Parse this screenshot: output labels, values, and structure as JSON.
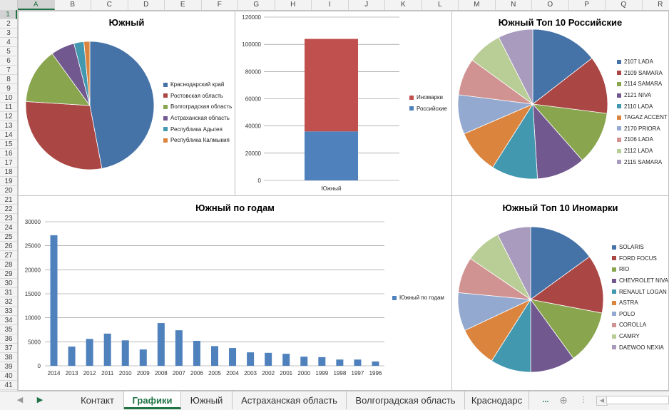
{
  "columns": [
    "A",
    "B",
    "C",
    "D",
    "E",
    "F",
    "G",
    "H",
    "I",
    "J",
    "K",
    "L",
    "M",
    "N",
    "O",
    "P",
    "Q",
    "R"
  ],
  "rows": [
    "1",
    "2",
    "3",
    "4",
    "5",
    "6",
    "7",
    "8",
    "9",
    "10",
    "11",
    "12",
    "13",
    "14",
    "15",
    "16",
    "17",
    "18",
    "19",
    "20",
    "21",
    "22",
    "23",
    "24",
    "25",
    "26",
    "27",
    "28",
    "29",
    "30",
    "31",
    "32",
    "33",
    "34",
    "35",
    "36",
    "37",
    "38",
    "39",
    "40",
    "41"
  ],
  "charts": {
    "pie_regions": {
      "title": "Южный",
      "legend": [
        "Краснодарский край",
        "Ростовская область",
        "Волгоградская область",
        "Астраханская область",
        "Республика Адыгея",
        "Республика Калмыкия"
      ]
    },
    "stacked": {
      "yticks": [
        "120000",
        "100000",
        "80000",
        "60000",
        "40000",
        "20000",
        "0"
      ],
      "category": "Южный",
      "legend": [
        "Иномарки",
        "Российские"
      ]
    },
    "pie_ru": {
      "title": "Южный Топ 10 Российские",
      "legend": [
        "2107 LADA",
        "2109 SAMARA",
        "2114 SAMARA",
        "2121 NIVA",
        "2110 LADA",
        "TAGAZ ACCENT",
        "2170 PRIORA",
        "2106 LADA",
        "2112 LADA",
        "2115 SAMARA"
      ]
    },
    "years": {
      "title": "Южный по годам",
      "yticks": [
        "30000",
        "25000",
        "20000",
        "15000",
        "10000",
        "5000",
        "0"
      ],
      "xlabels": [
        "2014",
        "2013",
        "2012",
        "2011",
        "2010",
        "2009",
        "2008",
        "2007",
        "2006",
        "2005",
        "2004",
        "2003",
        "2002",
        "2001",
        "2000",
        "1999",
        "1998",
        "1997",
        "1996"
      ],
      "legend": "Южный по годам"
    },
    "pie_foreign": {
      "title": "Южный Топ 10 Иномарки",
      "legend": [
        "SOLARIS",
        "FORD FOCUS",
        "RIO",
        "CHEVROLET NIVA",
        "RENAULT LOGAN",
        "ASTRA",
        "POLO",
        "COROLLA",
        "CAMRY",
        "DAEWOO NEXIA"
      ]
    }
  },
  "chart_data": [
    {
      "type": "pie",
      "title": "Южный",
      "categories": [
        "Краснодарский край",
        "Ростовская область",
        "Волгоградская область",
        "Астраханская область",
        "Республика Адыгея",
        "Республика Калмыкия"
      ],
      "values": [
        47,
        29,
        14,
        6,
        2.5,
        1.5
      ],
      "colors": [
        "#4572A7",
        "#AA4643",
        "#89A54E",
        "#71588F",
        "#4198AF",
        "#DB843D"
      ]
    },
    {
      "type": "bar",
      "stacked": true,
      "categories": [
        "Южный"
      ],
      "series": [
        {
          "name": "Российские",
          "values": [
            36000
          ]
        },
        {
          "name": "Иномарки",
          "values": [
            68000
          ]
        }
      ],
      "ylim": [
        0,
        120000
      ],
      "colors": [
        "#4F81BD",
        "#C0504D"
      ]
    },
    {
      "type": "pie",
      "title": "Южный Топ 10 Российские",
      "categories": [
        "2107 LADA",
        "2109 SAMARA",
        "2114 SAMARA",
        "2121 NIVA",
        "2110 LADA",
        "TAGAZ ACCENT",
        "2170 PRIORA",
        "2106 LADA",
        "2112 LADA",
        "2115 SAMARA"
      ],
      "values": [
        14.5,
        12.5,
        11.5,
        10.5,
        10,
        9.5,
        8.5,
        8,
        7.5,
        7.5
      ],
      "colors": [
        "#4572A7",
        "#AA4643",
        "#89A54E",
        "#71588F",
        "#4198AF",
        "#DB843D",
        "#93A9CF",
        "#D19392",
        "#B9CD96",
        "#A99BBD"
      ]
    },
    {
      "type": "bar",
      "title": "Южный по годам",
      "categories": [
        "2014",
        "2013",
        "2012",
        "2011",
        "2010",
        "2009",
        "2008",
        "2007",
        "2006",
        "2005",
        "2004",
        "2003",
        "2002",
        "2001",
        "2000",
        "1999",
        "1998",
        "1997",
        "1996"
      ],
      "series": [
        {
          "name": "Южный по годам",
          "values": [
            27200,
            4000,
            5600,
            6700,
            5300,
            3400,
            8900,
            7400,
            5200,
            4100,
            3700,
            2800,
            2700,
            2500,
            1900,
            1800,
            1300,
            1300,
            900
          ]
        }
      ],
      "ylim": [
        0,
        30000
      ],
      "colors": [
        "#4F81BD"
      ]
    },
    {
      "type": "pie",
      "title": "Южный Топ 10 Иномарки",
      "categories": [
        "SOLARIS",
        "FORD FOCUS",
        "RIO",
        "CHEVROLET NIVA",
        "RENAULT LOGAN",
        "ASTRA",
        "POLO",
        "COROLLA",
        "CAMRY",
        "DAEWOO NEXIA"
      ],
      "values": [
        15,
        13,
        12,
        10,
        9,
        9,
        8.5,
        8,
        8,
        7.5
      ],
      "colors": [
        "#4572A7",
        "#AA4643",
        "#89A54E",
        "#71588F",
        "#4198AF",
        "#DB843D",
        "#93A9CF",
        "#D19392",
        "#B9CD96",
        "#A99BBD"
      ]
    }
  ],
  "sheet_tabs": [
    {
      "label": "Контакт",
      "active": false
    },
    {
      "label": "Графики",
      "active": true
    },
    {
      "label": "Южный",
      "active": false
    },
    {
      "label": "Астраханская область",
      "active": false
    },
    {
      "label": "Волгоградская область",
      "active": false
    },
    {
      "label": "Краснодарс",
      "active": false
    }
  ],
  "tab_overflow": "...",
  "icons": {
    "prev": "triangle-left-icon",
    "next": "triangle-right-icon",
    "add": "plus-circle-icon",
    "menu": "vertical-dots-icon",
    "scroll_left": "triangle-left-icon"
  }
}
